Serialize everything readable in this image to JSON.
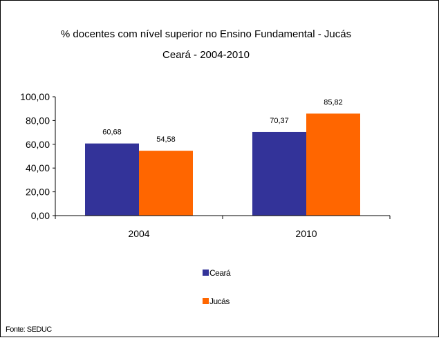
{
  "chart_data": {
    "type": "bar",
    "title": "% docentes com nível  superior no Ensino Fundamental - Jucás",
    "subtitle": "Ceará - 2004-2010",
    "categories": [
      "2004",
      "2010"
    ],
    "series": [
      {
        "name": "Ceará",
        "color": "#333399",
        "values": [
          60.68,
          70.37
        ],
        "labels": [
          "60,68",
          "70,37"
        ]
      },
      {
        "name": "Jucás",
        "color": "#FF6600",
        "values": [
          54.58,
          85.82
        ],
        "labels": [
          "54,58",
          "85,82"
        ]
      }
    ],
    "ylim": [
      0,
      100
    ],
    "yticks": [
      0,
      20,
      40,
      60,
      80,
      100
    ],
    "ytick_labels": [
      "0,00",
      "20,00",
      "40,00",
      "60,00",
      "80,00",
      "100,00"
    ],
    "grid": false,
    "legend_position": "bottom",
    "source": "Fonte: SEDUC"
  }
}
